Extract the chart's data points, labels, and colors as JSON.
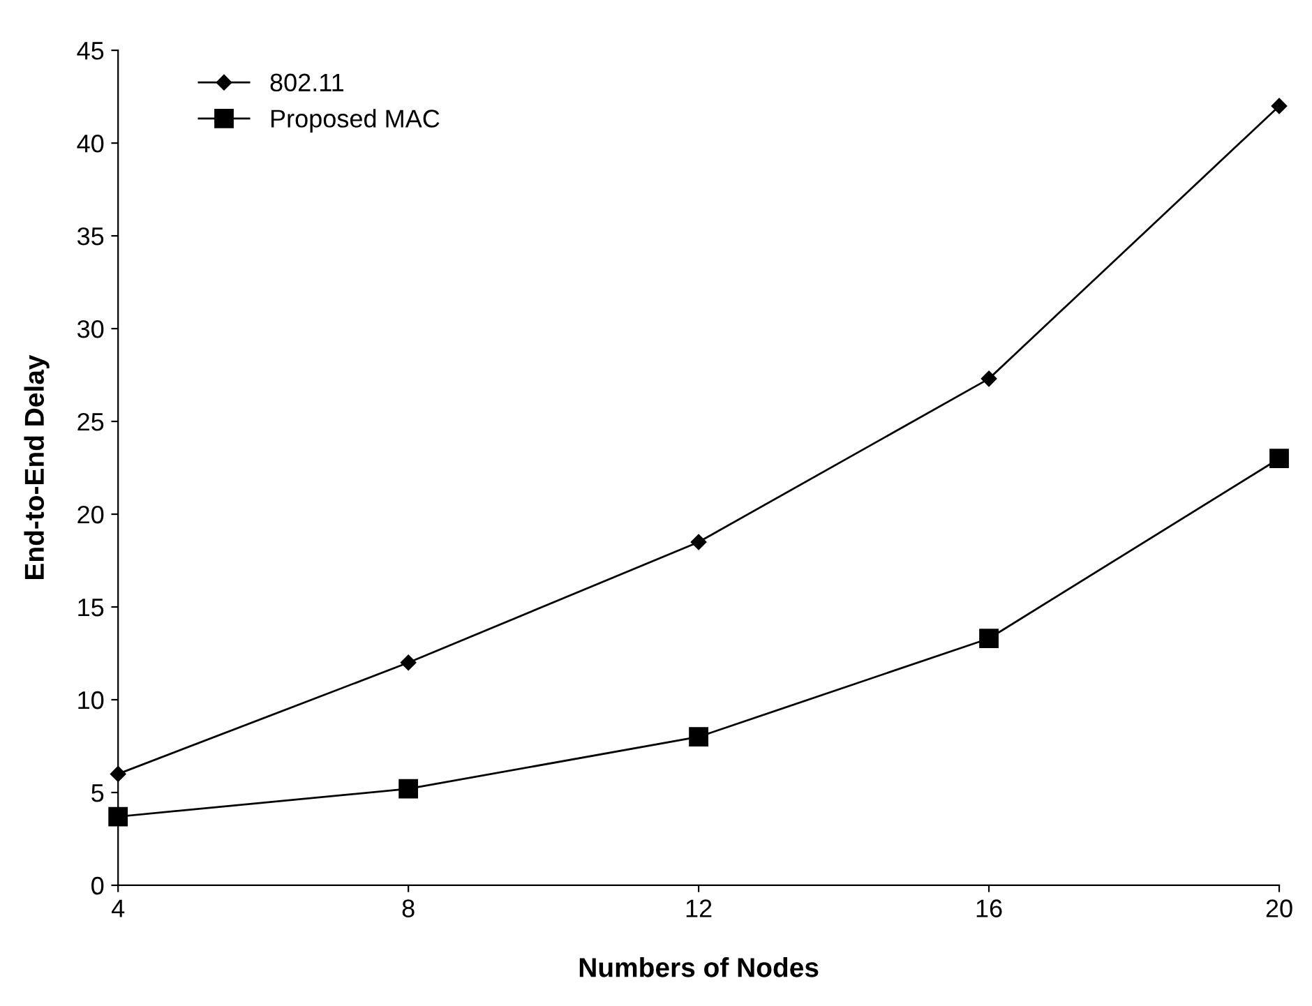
{
  "chart_data": {
    "type": "line",
    "xlabel": "Numbers of Nodes",
    "ylabel": "End-to-End Delay",
    "x": [
      4,
      8,
      12,
      16,
      20
    ],
    "series": [
      {
        "name": "802.11",
        "color": "#000000",
        "marker": "diamond",
        "values": [
          6,
          12,
          18.5,
          27.3,
          42
        ]
      },
      {
        "name": "Proposed MAC",
        "color": "#000000",
        "marker": "square",
        "values": [
          3.7,
          5.2,
          8,
          13.3,
          23
        ]
      }
    ],
    "xlim": [
      4,
      20
    ],
    "xticks": [
      4,
      8,
      12,
      16,
      20
    ],
    "ylim": [
      0,
      45
    ],
    "yticks": [
      0,
      5,
      10,
      15,
      20,
      25,
      30,
      35,
      40,
      45
    ],
    "grid": false,
    "legend": "top left",
    "line_style": "solid"
  }
}
